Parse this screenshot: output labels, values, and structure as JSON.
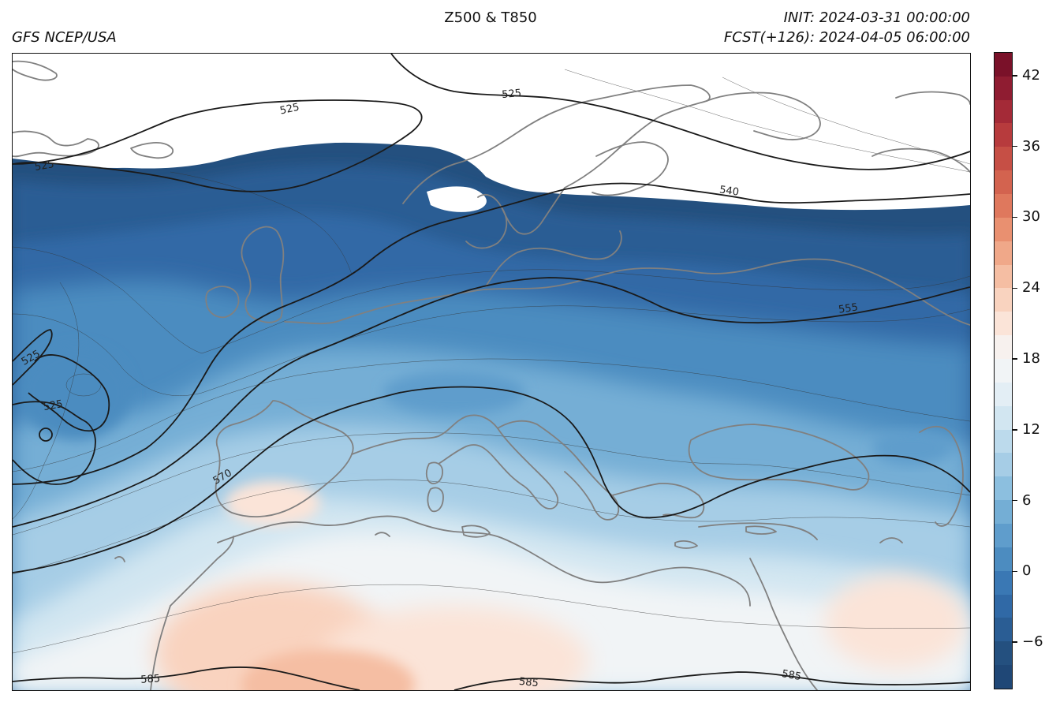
{
  "header": {
    "title": "Z500 & T850",
    "source": "GFS NCEP/USA",
    "init": "INIT: 2024-03-31 00:00:00",
    "forecast": "FCST(+126): 2024-04-05 06:00:00"
  },
  "map": {
    "field_filled": "T850",
    "field_contour": "Z500",
    "contour_labels": [
      "525",
      "525",
      "525",
      "525",
      "525",
      "540",
      "555",
      "570",
      "585",
      "585",
      "585"
    ],
    "coastline_color": "#808080",
    "contour_color": "#1a1a1a"
  },
  "colorbar": {
    "tick_labels": [
      "−6",
      "0",
      "6",
      "12",
      "18",
      "24",
      "30",
      "36",
      "42"
    ],
    "tick_values": [
      -6,
      0,
      6,
      12,
      18,
      24,
      30,
      36,
      42
    ],
    "range": [
      -10,
      44
    ],
    "step": 2,
    "colors": [
      "#1f4776",
      "#24507f",
      "#2a5d94",
      "#3069a6",
      "#3a78b4",
      "#4c8cc0",
      "#5f9dcc",
      "#74aed5",
      "#8cbfdf",
      "#a6cde6",
      "#bcdaec",
      "#d2e6f1",
      "#e3eef5",
      "#f1f4f6",
      "#f7f1ee",
      "#fbe4d8",
      "#f9d3bf",
      "#f5bea3",
      "#f0a889",
      "#e99070",
      "#df785d",
      "#d3634f",
      "#c64f45",
      "#b73b3d",
      "#a42a37",
      "#8f1c31",
      "#7a1129"
    ]
  }
}
